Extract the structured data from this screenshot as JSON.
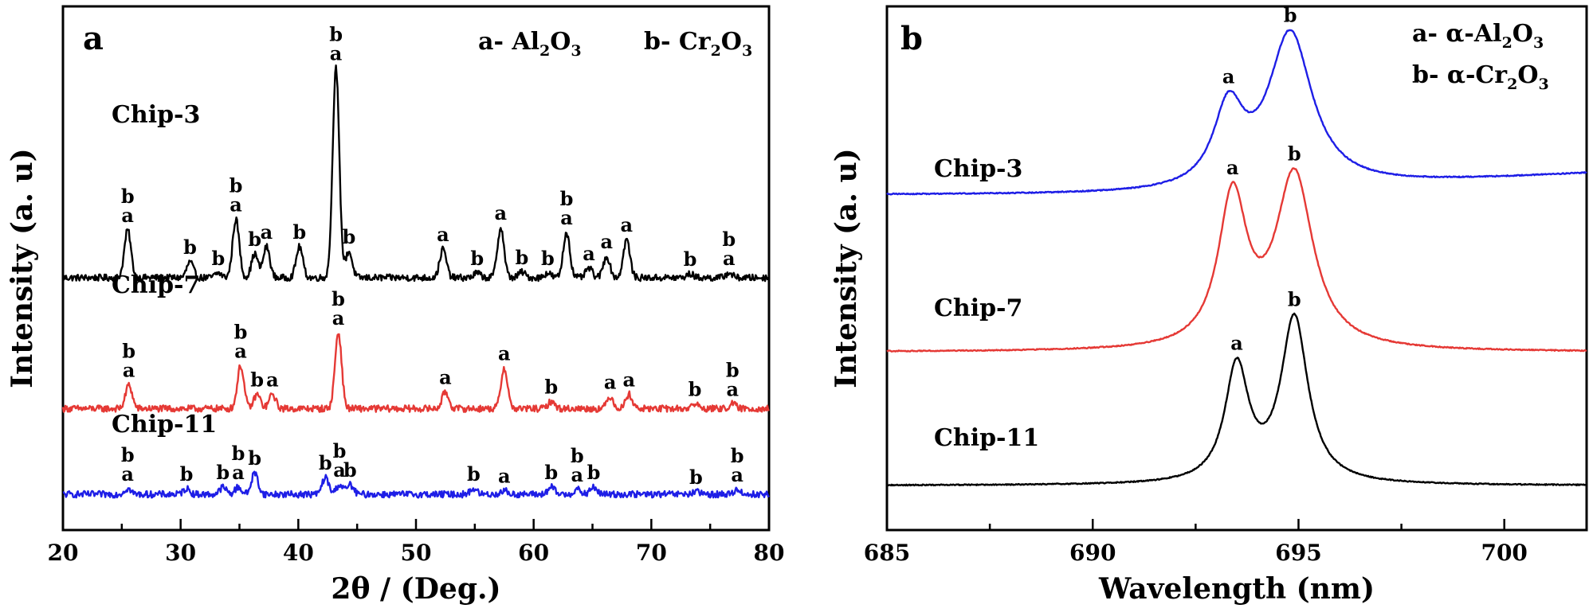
{
  "panels": [
    {
      "id": "a",
      "letter": "a",
      "xlabel": "2θ / (Deg.)",
      "ylabel": "Intensity (a. u)",
      "xlim": [
        20,
        80
      ],
      "xticks": [
        20,
        30,
        40,
        50,
        60,
        70,
        80
      ],
      "legend": [
        {
          "prefix": "a- ",
          "name": "Al",
          "s1": "2",
          "mid": "O",
          "s2": "3"
        },
        {
          "prefix": "b- ",
          "name": "Cr",
          "s1": "2",
          "mid": "O",
          "s2": "3"
        }
      ]
    },
    {
      "id": "b",
      "letter": "b",
      "xlabel": "Wavelength (nm)",
      "ylabel": "Intensity (a. u)",
      "xlim": [
        685,
        702
      ],
      "xticks": [
        685,
        690,
        695,
        700
      ],
      "legend": [
        {
          "prefix": "a- ",
          "name": "α-Al",
          "s1": "2",
          "mid": "O",
          "s2": "3"
        },
        {
          "prefix": "b- ",
          "name": "α-Cr",
          "s1": "2",
          "mid": "O",
          "s2": "3"
        }
      ]
    }
  ],
  "chart_data": [
    {
      "type": "line",
      "panel": "a",
      "xlabel": "2θ / (Deg.)",
      "ylabel": "Intensity (a. u)",
      "xlim": [
        20,
        80
      ],
      "ylim": [
        0,
        11
      ],
      "grid": false,
      "series": [
        {
          "name": "Chip-3",
          "color": "#000000",
          "baseline": 5.3,
          "peaks": [
            {
              "x": 25.5,
              "h": 1.0,
              "label": "b\na"
            },
            {
              "x": 30.8,
              "h": 0.33,
              "label": "b"
            },
            {
              "x": 33.2,
              "h": 0.1,
              "label": "b"
            },
            {
              "x": 34.7,
              "h": 1.23,
              "label": "b\na"
            },
            {
              "x": 36.3,
              "h": 0.5,
              "label": "b"
            },
            {
              "x": 37.3,
              "h": 0.65,
              "label": "a"
            },
            {
              "x": 40.1,
              "h": 0.65,
              "label": "b"
            },
            {
              "x": 43.2,
              "h": 4.4,
              "label": "b\na"
            },
            {
              "x": 44.3,
              "h": 0.55,
              "label": "b"
            },
            {
              "x": 52.3,
              "h": 0.6,
              "label": "a"
            },
            {
              "x": 55.2,
              "h": 0.1,
              "label": "b"
            },
            {
              "x": 57.2,
              "h": 1.05,
              "label": "a"
            },
            {
              "x": 59.0,
              "h": 0.12,
              "label": "b"
            },
            {
              "x": 61.2,
              "h": 0.1,
              "label": "b"
            },
            {
              "x": 62.8,
              "h": 0.95,
              "label": "b\na"
            },
            {
              "x": 64.7,
              "h": 0.2,
              "label": "a"
            },
            {
              "x": 66.2,
              "h": 0.45,
              "label": "a"
            },
            {
              "x": 67.9,
              "h": 0.8,
              "label": "a"
            },
            {
              "x": 73.3,
              "h": 0.08,
              "label": "b"
            },
            {
              "x": 76.6,
              "h": 0.1,
              "label": "b\na"
            }
          ]
        },
        {
          "name": "Chip-7",
          "color": "#e53935",
          "baseline": 2.55,
          "peaks": [
            {
              "x": 25.6,
              "h": 0.5,
              "label": "b\na"
            },
            {
              "x": 35.1,
              "h": 0.9,
              "label": "b\na"
            },
            {
              "x": 36.5,
              "h": 0.3,
              "label": "b"
            },
            {
              "x": 37.8,
              "h": 0.3,
              "label": "a"
            },
            {
              "x": 43.4,
              "h": 1.6,
              "label": "b\na"
            },
            {
              "x": 52.5,
              "h": 0.35,
              "label": "a"
            },
            {
              "x": 57.5,
              "h": 0.85,
              "label": "a"
            },
            {
              "x": 61.5,
              "h": 0.15,
              "label": "b"
            },
            {
              "x": 66.5,
              "h": 0.25,
              "label": "a"
            },
            {
              "x": 68.1,
              "h": 0.3,
              "label": "a"
            },
            {
              "x": 73.7,
              "h": 0.1,
              "label": "b"
            },
            {
              "x": 76.9,
              "h": 0.1,
              "label": "b\na"
            }
          ]
        },
        {
          "name": "Chip-11",
          "color": "#1e1ee6",
          "baseline": 0.75,
          "peaks": [
            {
              "x": 25.5,
              "h": 0.12,
              "label": "b\na"
            },
            {
              "x": 30.5,
              "h": 0.12,
              "label": "b"
            },
            {
              "x": 33.6,
              "h": 0.15,
              "label": "b"
            },
            {
              "x": 34.9,
              "h": 0.15,
              "label": "b\na"
            },
            {
              "x": 36.3,
              "h": 0.45,
              "label": "b"
            },
            {
              "x": 42.3,
              "h": 0.35,
              "label": "b"
            },
            {
              "x": 43.5,
              "h": 0.2,
              "label": "b\na"
            },
            {
              "x": 44.4,
              "h": 0.2,
              "label": "b"
            },
            {
              "x": 54.9,
              "h": 0.12,
              "label": "b"
            },
            {
              "x": 57.5,
              "h": 0.08,
              "label": "a"
            },
            {
              "x": 61.5,
              "h": 0.15,
              "label": "b"
            },
            {
              "x": 63.7,
              "h": 0.1,
              "label": "b\na"
            },
            {
              "x": 65.1,
              "h": 0.15,
              "label": "b"
            },
            {
              "x": 73.8,
              "h": 0.05,
              "label": "b"
            },
            {
              "x": 77.3,
              "h": 0.1,
              "label": "b\na"
            }
          ]
        }
      ]
    },
    {
      "type": "line",
      "panel": "b",
      "xlabel": "Wavelength (nm)",
      "ylabel": "Intensity (a. u)",
      "xlim": [
        685,
        702
      ],
      "ylim": [
        0,
        10
      ],
      "grid": false,
      "series": [
        {
          "name": "Chip-3",
          "color": "#1e1ee6",
          "baseline": 6.4,
          "end": 6.8,
          "peaks": [
            {
              "x": 693.3,
              "h": 1.5,
              "w": 0.45,
              "label": "a"
            },
            {
              "x": 694.8,
              "h": 2.95,
              "w": 0.65,
              "label": "b"
            }
          ]
        },
        {
          "name": "Chip-7",
          "color": "#e53935",
          "baseline": 3.4,
          "end": 3.4,
          "peaks": [
            {
              "x": 693.4,
              "h": 2.85,
              "w": 0.42,
              "label": "a"
            },
            {
              "x": 694.9,
              "h": 3.3,
              "w": 0.55,
              "label": "b"
            }
          ]
        },
        {
          "name": "Chip-11",
          "color": "#000000",
          "baseline": 0.85,
          "end": 0.85,
          "peaks": [
            {
              "x": 693.5,
              "h": 2.2,
              "w": 0.35,
              "label": "a"
            },
            {
              "x": 694.9,
              "h": 3.15,
              "w": 0.4,
              "label": "b"
            }
          ]
        }
      ]
    }
  ]
}
